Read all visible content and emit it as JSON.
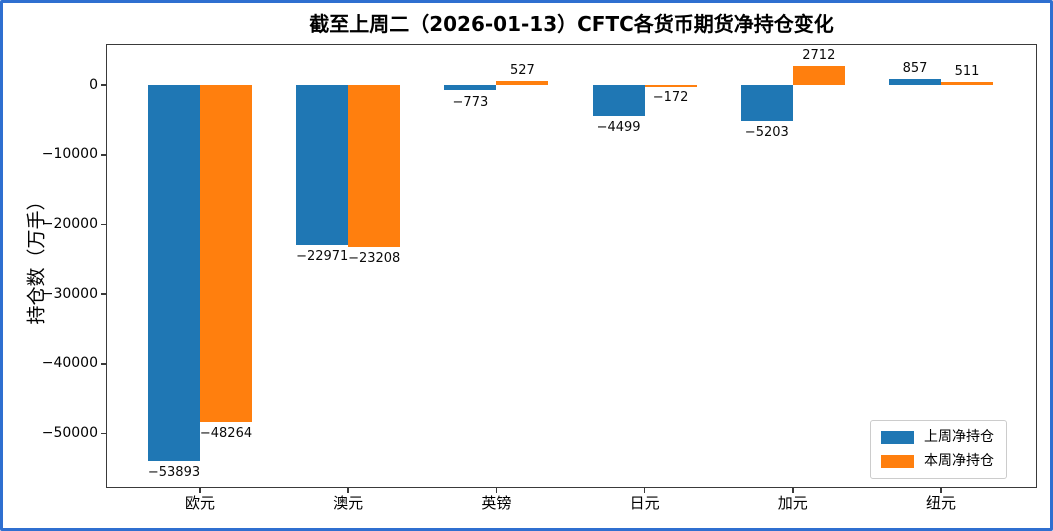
{
  "figure": {
    "border_color": "#2f6fd0",
    "background_color": "#ffffff",
    "spine_color": "#3a3a3a"
  },
  "chart_data": {
    "type": "bar",
    "title": "截至上周二（2026-01-13）CFTC各货币期货净持仓变化",
    "xlabel": "",
    "ylabel": "持仓数（万手）",
    "categories": [
      "欧元",
      "澳元",
      "英镑",
      "日元",
      "加元",
      "纽元"
    ],
    "series": [
      {
        "name": "上周净持仓",
        "color": "#1f77b4",
        "values": [
          -53893,
          -22971,
          -773,
          -4499,
          -5203,
          857
        ]
      },
      {
        "name": "本周净持仓",
        "color": "#ff7f0e",
        "values": [
          -48264,
          -23208,
          527,
          -172,
          2712,
          511
        ]
      }
    ],
    "yticks": [
      0,
      -10000,
      -20000,
      -30000,
      -40000,
      -50000
    ],
    "ylim": [
      -57800,
      5900
    ],
    "grid": false,
    "bar_value_labels": true,
    "legend_position": "lower right"
  }
}
